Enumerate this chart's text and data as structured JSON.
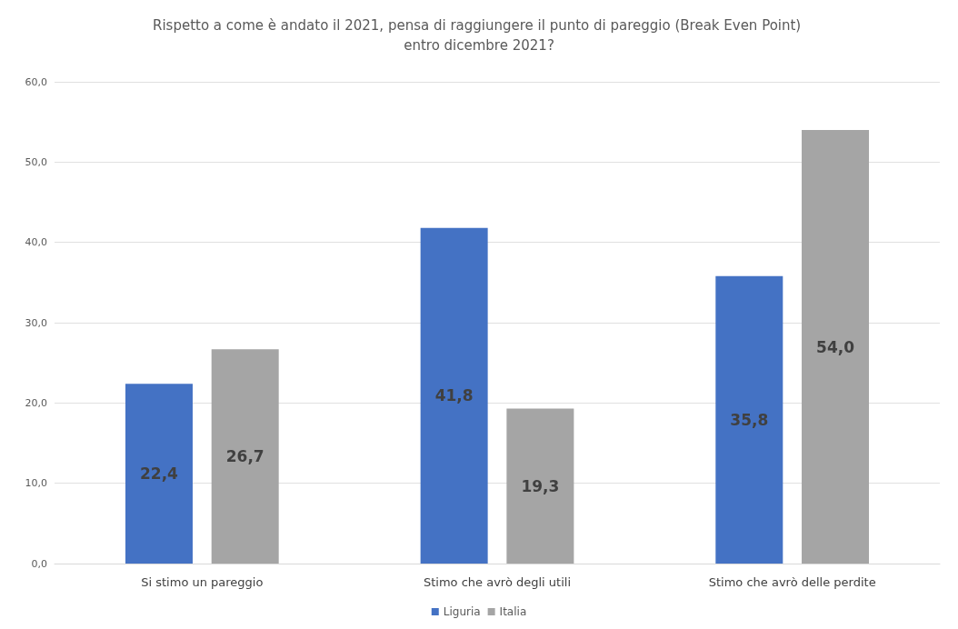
{
  "chart_data": {
    "type": "bar",
    "title": "Rispetto a come è andato il 2021, pensa di raggiungere il punto di pareggio (Break Even Point) entro dicembre 2021?",
    "categories": [
      "Si stimo un pareggio",
      "Stimo che avrò degli utili",
      "Stimo che avrò delle perdite"
    ],
    "series": [
      {
        "name": "Liguria",
        "color": "#4472c4",
        "values": [
          22.4,
          41.8,
          35.8
        ],
        "value_labels": [
          "22,4",
          "41,8",
          "35,8"
        ]
      },
      {
        "name": "Italia",
        "color": "#a5a5a5",
        "values": [
          26.7,
          19.3,
          54.0
        ],
        "value_labels": [
          "26,7",
          "19,3",
          "54,0"
        ]
      }
    ],
    "ylim": [
      0,
      60
    ],
    "yticks": [
      {
        "value": 0,
        "label": "0,0"
      },
      {
        "value": 10,
        "label": "10,0"
      },
      {
        "value": 20,
        "label": "20,0"
      },
      {
        "value": 30,
        "label": "30,0"
      },
      {
        "value": 40,
        "label": "40,0"
      },
      {
        "value": 50,
        "label": "50,0"
      },
      {
        "value": 60,
        "label": "60,0"
      }
    ],
    "grid": "y",
    "legend": "bottom"
  }
}
